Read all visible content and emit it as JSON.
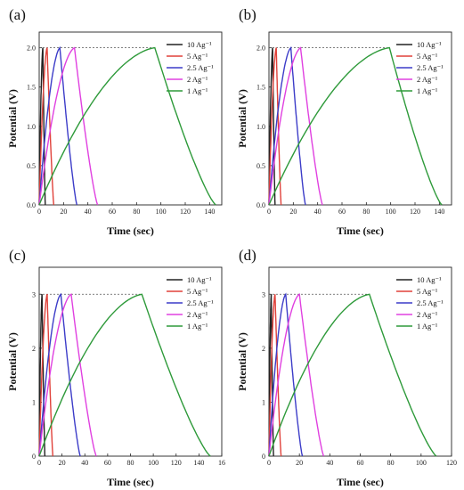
{
  "chart_data": [
    {
      "type": "line",
      "panel_label": "(a)",
      "xlabel": "Time (sec)",
      "ylabel": "Potential (V)",
      "xlim": [
        0,
        150
      ],
      "ylim": [
        0,
        2.2
      ],
      "xticks": [
        "0",
        "20",
        "40",
        "60",
        "80",
        "100",
        "120",
        "140"
      ],
      "yticks": [
        "0.0",
        "0.5",
        "1.0",
        "1.5",
        "2.0"
      ],
      "vmax": 2.0,
      "dashed_ref": 2.0,
      "legend_position": "top-right",
      "series": [
        {
          "name": "10 Ag⁻¹",
          "color": "#222222",
          "charge_end": 3,
          "discharge_end": 5
        },
        {
          "name": "5 Ag⁻¹",
          "color": "#e0413a",
          "charge_end": 6.5,
          "discharge_end": 12
        },
        {
          "name": "2.5 Ag⁻¹",
          "color": "#3c3cc8",
          "charge_end": 17,
          "discharge_end": 31
        },
        {
          "name": "2 Ag⁻¹",
          "color": "#e040e0",
          "charge_end": 29,
          "discharge_end": 48
        },
        {
          "name": "1 Ag⁻¹",
          "color": "#2e9a3a",
          "charge_end": 95,
          "discharge_end": 145
        }
      ]
    },
    {
      "type": "line",
      "panel_label": "(b)",
      "xlabel": "Time (sec)",
      "ylabel": "Potential (V)",
      "xlim": [
        0,
        150
      ],
      "ylim": [
        0,
        2.2
      ],
      "xticks": [
        "0",
        "20",
        "40",
        "60",
        "80",
        "100",
        "120",
        "140"
      ],
      "yticks": [
        "0.0",
        "0.5",
        "1.0",
        "1.5",
        "2.0"
      ],
      "vmax": 2.0,
      "dashed_ref": 2.0,
      "legend_position": "top-right",
      "series": [
        {
          "name": "10 Ag⁻¹",
          "color": "#222222",
          "charge_end": 3,
          "discharge_end": 5
        },
        {
          "name": "5 Ag⁻¹",
          "color": "#e0413a",
          "charge_end": 6,
          "discharge_end": 10
        },
        {
          "name": "2.5 Ag⁻¹",
          "color": "#3c3cc8",
          "charge_end": 18,
          "discharge_end": 30
        },
        {
          "name": "2 Ag⁻¹",
          "color": "#e040e0",
          "charge_end": 26,
          "discharge_end": 44
        },
        {
          "name": "1 Ag⁻¹",
          "color": "#2e9a3a",
          "charge_end": 99,
          "discharge_end": 142
        }
      ]
    },
    {
      "type": "line",
      "panel_label": "(c)",
      "xlabel": "Time (sec)",
      "ylabel": "Potential (V)",
      "xlim": [
        0,
        160
      ],
      "ylim": [
        0,
        3.5
      ],
      "xticks": [
        "0",
        "20",
        "40",
        "60",
        "80",
        "100",
        "120",
        "140",
        "16"
      ],
      "yticks": [
        "0",
        "1",
        "2",
        "3"
      ],
      "vmax": 3.0,
      "dashed_ref": 3.0,
      "legend_position": "top-right",
      "series": [
        {
          "name": "10 Ag⁻¹",
          "color": "#222222",
          "charge_end": 2.5,
          "discharge_end": 5
        },
        {
          "name": "5 Ag⁻¹",
          "color": "#e0413a",
          "charge_end": 7,
          "discharge_end": 12
        },
        {
          "name": "2.5 Ag⁻¹",
          "color": "#3c3cc8",
          "charge_end": 19,
          "discharge_end": 36
        },
        {
          "name": "2 Ag⁻¹",
          "color": "#e040e0",
          "charge_end": 28,
          "discharge_end": 50
        },
        {
          "name": "1 Ag⁻¹",
          "color": "#2e9a3a",
          "charge_end": 90,
          "discharge_end": 150
        }
      ]
    },
    {
      "type": "line",
      "panel_label": "(d)",
      "xlabel": "Time (sec)",
      "ylabel": "Potential (V)",
      "xlim": [
        0,
        120
      ],
      "ylim": [
        0,
        3.5
      ],
      "xticks": [
        "0",
        "20",
        "40",
        "60",
        "80",
        "100",
        "120"
      ],
      "yticks": [
        "0",
        "1",
        "2",
        "3"
      ],
      "vmax": 3.0,
      "dashed_ref": 3.0,
      "legend_position": "top-right",
      "series": [
        {
          "name": "10 Ag⁻¹",
          "color": "#222222",
          "charge_end": 1.5,
          "discharge_end": 3
        },
        {
          "name": "5 Ag⁻¹",
          "color": "#e0413a",
          "charge_end": 4,
          "discharge_end": 8
        },
        {
          "name": "2.5 Ag⁻¹",
          "color": "#3c3cc8",
          "charge_end": 11,
          "discharge_end": 22
        },
        {
          "name": "2 Ag⁻¹",
          "color": "#e040e0",
          "charge_end": 20,
          "discharge_end": 36
        },
        {
          "name": "1 Ag⁻¹",
          "color": "#2e9a3a",
          "charge_end": 66,
          "discharge_end": 110
        }
      ]
    }
  ]
}
